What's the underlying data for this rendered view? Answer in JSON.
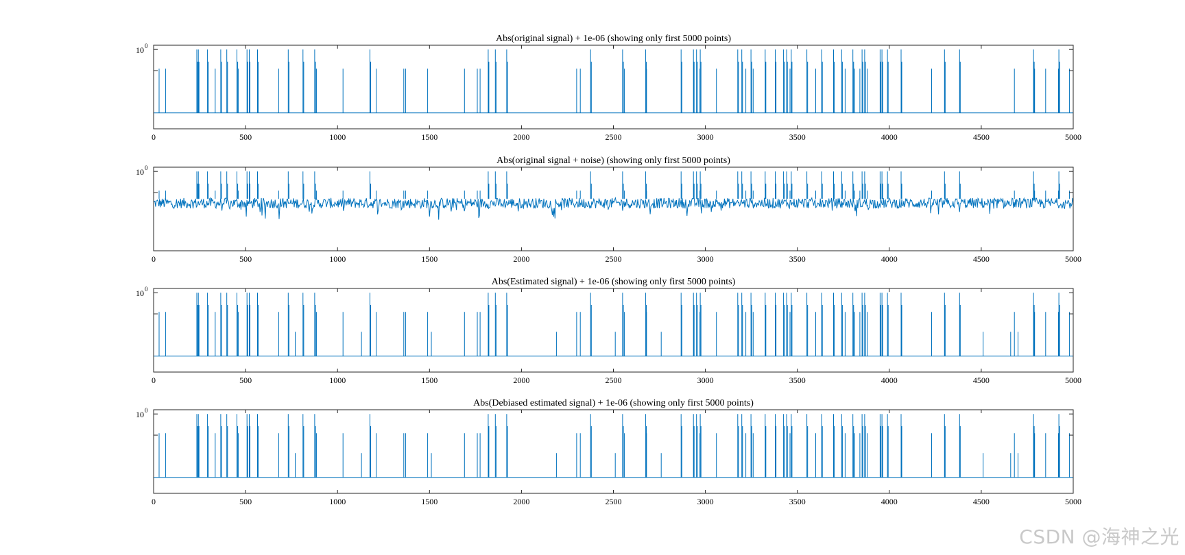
{
  "accent_color": "#0072bd",
  "watermark": "CSDN @海神之光",
  "chart_data": [
    {
      "type": "line",
      "title": "Abs(original signal) + 1e-06  (showing only first 5000 points)",
      "xlim": [
        0,
        5000
      ],
      "yscale": "log",
      "xticks": [
        "0",
        "500",
        "1000",
        "1500",
        "2000",
        "2500",
        "3000",
        "3500",
        "4000",
        "4500",
        "5000"
      ],
      "ytick_label": {
        "base": "10",
        "exponent": "0"
      },
      "baseline": 1e-06,
      "noise": false,
      "has_small_extras": false,
      "series": [
        {
          "name": "signal",
          "color": "#0072bd"
        }
      ]
    },
    {
      "type": "line",
      "title": "Abs(original signal + noise)  (showing only first 5000 points)",
      "xlim": [
        0,
        5000
      ],
      "yscale": "log",
      "xticks": [
        "0",
        "500",
        "1000",
        "1500",
        "2000",
        "2500",
        "3000",
        "3500",
        "4000",
        "4500",
        "5000"
      ],
      "ytick_label": {
        "base": "10",
        "exponent": "0"
      },
      "baseline": 0.001,
      "noise": true,
      "has_small_extras": false,
      "series": [
        {
          "name": "signal + noise",
          "color": "#0072bd"
        }
      ]
    },
    {
      "type": "line",
      "title": "Abs(Estimated signal) + 1e-06  (showing only first 5000 points)",
      "xlim": [
        0,
        5000
      ],
      "yscale": "log",
      "xticks": [
        "0",
        "500",
        "1000",
        "1500",
        "2000",
        "2500",
        "3000",
        "3500",
        "4000",
        "4500",
        "5000"
      ],
      "ytick_label": {
        "base": "10",
        "exponent": "0"
      },
      "baseline": 1e-06,
      "noise": false,
      "has_small_extras": true,
      "series": [
        {
          "name": "estimated",
          "color": "#0072bd"
        }
      ]
    },
    {
      "type": "line",
      "title": "Abs(Debiased estimated signal) + 1e-06  (showing only first 5000 points)",
      "xlim": [
        0,
        5000
      ],
      "yscale": "log",
      "xticks": [
        "0",
        "500",
        "1000",
        "1500",
        "2000",
        "2500",
        "3000",
        "3500",
        "4000",
        "4500",
        "5000"
      ],
      "ytick_label": {
        "base": "10",
        "exponent": "0"
      },
      "baseline": 1e-06,
      "noise": false,
      "has_small_extras": true,
      "series": [
        {
          "name": "debiased estimated",
          "color": "#0072bd"
        }
      ]
    }
  ],
  "spikes": {
    "large": [
      235,
      243,
      293,
      365,
      398,
      453,
      508,
      520,
      565,
      732,
      812,
      876,
      1176,
      1819,
      1858,
      1920,
      2376,
      2550,
      2675,
      2868,
      2935,
      2952,
      2972,
      3176,
      3198,
      3248,
      3325,
      3380,
      3425,
      3442,
      3467,
      3552,
      3632,
      3697,
      3741,
      3802,
      3852,
      3866,
      3950,
      3960,
      3990,
      4064,
      4300,
      4382,
      4784,
      4922
    ],
    "small": [
      30,
      65,
      245,
      335,
      460,
      680,
      885,
      1030,
      1210,
      1360,
      1370,
      1490,
      1690,
      1760,
      1775,
      2300,
      2320,
      2560,
      2680,
      2970,
      3060,
      3220,
      3260,
      3460,
      3600,
      3760,
      3810,
      3840,
      3880,
      3960,
      3990,
      4230,
      4680,
      4790,
      4850,
      4920,
      4980
    ],
    "extras": [
      770,
      1130,
      1510,
      2190,
      2510,
      2760,
      4510,
      4660,
      4680,
      4700
    ]
  }
}
